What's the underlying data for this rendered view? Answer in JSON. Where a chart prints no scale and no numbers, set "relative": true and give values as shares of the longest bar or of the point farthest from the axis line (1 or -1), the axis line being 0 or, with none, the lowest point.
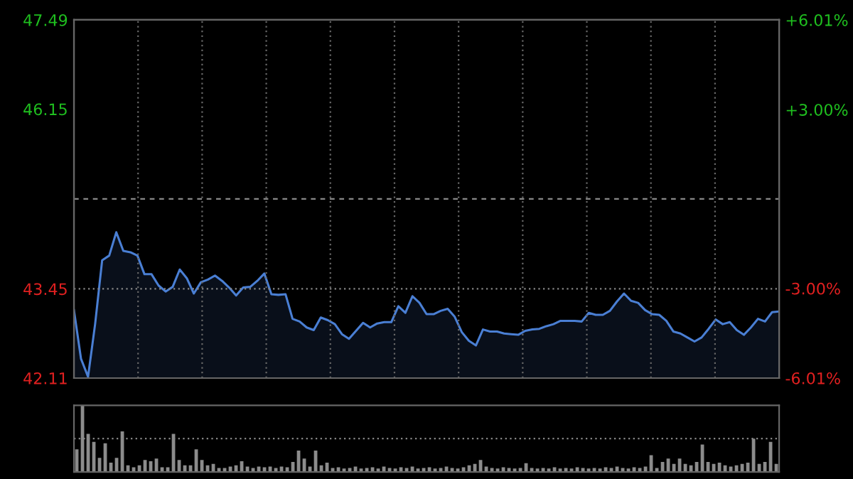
{
  "chart_data": [
    {
      "type": "area",
      "categories": [
        null,
        null,
        null,
        null,
        null,
        null,
        null,
        null,
        null,
        null,
        null,
        null,
        null,
        null,
        null,
        null,
        null,
        null,
        null,
        null,
        null,
        null,
        null,
        null,
        null,
        null,
        null,
        null,
        null,
        null,
        null,
        null,
        null,
        null,
        null,
        null,
        null,
        null,
        null,
        null,
        null,
        null,
        null,
        null,
        null,
        null,
        null,
        null,
        null,
        null,
        null,
        null,
        null,
        null,
        null,
        null,
        null,
        null,
        null,
        null,
        null,
        null,
        null,
        null,
        null,
        null,
        null,
        null,
        null,
        null,
        null,
        null,
        null,
        null,
        null,
        null,
        null,
        null,
        null,
        null,
        null,
        null,
        null,
        null,
        null,
        null,
        null,
        null,
        null,
        null,
        null,
        null,
        null,
        null,
        null,
        null,
        null,
        null,
        null,
        null,
        null
      ],
      "series": [
        {
          "color": "#4a7fd4",
          "values": [
            43.13,
            42.4,
            42.13,
            42.92,
            43.88,
            43.95,
            44.3,
            44.02,
            44.0,
            43.95,
            43.67,
            43.67,
            43.5,
            43.41,
            43.48,
            43.74,
            43.61,
            43.38,
            43.55,
            43.59,
            43.65,
            43.57,
            43.47,
            43.35,
            43.47,
            43.48,
            43.57,
            43.68,
            43.37,
            43.36,
            43.37,
            43.0,
            42.96,
            42.87,
            42.83,
            43.02,
            42.98,
            42.92,
            42.77,
            42.7,
            42.82,
            42.94,
            42.87,
            42.93,
            42.95,
            42.95,
            43.19,
            43.09,
            43.34,
            43.24,
            43.07,
            43.07,
            43.12,
            43.15,
            43.03,
            42.8,
            42.67,
            42.6,
            42.84,
            42.81,
            42.81,
            42.78,
            42.77,
            42.76,
            42.82,
            42.84,
            42.85,
            42.89,
            42.92,
            42.97,
            42.97,
            42.97,
            42.96,
            43.09,
            43.06,
            43.06,
            43.12,
            43.26,
            43.38,
            43.27,
            43.24,
            43.13,
            43.07,
            43.06,
            42.97,
            42.81,
            42.78,
            42.72,
            42.66,
            42.72,
            42.85,
            42.99,
            42.92,
            42.95,
            42.83,
            42.76,
            42.87,
            43.0,
            42.96,
            43.1,
            43.11
          ]
        }
      ],
      "ylim": [
        42.11,
        47.49
      ],
      "yticks": [
        42.11,
        43.45,
        46.15,
        47.49
      ],
      "y2lim": [
        -6.01,
        6.01
      ],
      "y2ticks": [
        {
          "value": -6.01,
          "label": "-6.01%"
        },
        {
          "value": -3.0,
          "label": "-3.00%"
        },
        {
          "value": 3.0,
          "label": "+3.00%"
        },
        {
          "value": 6.01,
          "label": "+6.01%"
        }
      ],
      "grid": "x",
      "ref_lines": [
        {
          "axis": "y",
          "value": 44.8,
          "line_style": "dashed",
          "color": "#888888"
        },
        {
          "axis": "y",
          "value": 43.45,
          "line_style": "dotted",
          "color": "#888888"
        }
      ]
    },
    {
      "type": "bar",
      "relative": true,
      "categories": [
        null,
        null,
        null,
        null,
        null,
        null,
        null,
        null,
        null,
        null,
        null,
        null,
        null,
        null,
        null,
        null,
        null,
        null,
        null,
        null,
        null,
        null,
        null,
        null,
        null,
        null,
        null,
        null,
        null,
        null,
        null,
        null,
        null,
        null,
        null,
        null,
        null,
        null,
        null,
        null,
        null,
        null,
        null,
        null,
        null,
        null,
        null,
        null,
        null,
        null,
        null,
        null,
        null,
        null,
        null,
        null,
        null,
        null,
        null,
        null,
        null,
        null,
        null,
        null,
        null,
        null,
        null,
        null,
        null,
        null,
        null,
        null,
        null,
        null,
        null,
        null,
        null,
        null,
        null,
        null,
        null,
        null,
        null,
        null,
        null,
        null,
        null,
        null,
        null,
        null,
        null,
        null,
        null,
        null,
        null,
        null,
        null,
        null,
        null,
        null,
        null,
        null,
        null,
        null,
        null,
        null,
        null,
        null,
        null,
        null,
        null,
        null,
        null,
        null,
        null,
        null,
        null,
        null,
        null,
        null,
        null,
        null,
        null,
        null
      ],
      "color": "#8c8c8c",
      "values": [
        0.34,
        1.0,
        0.57,
        0.45,
        0.21,
        0.43,
        0.14,
        0.21,
        0.61,
        0.1,
        0.07,
        0.1,
        0.18,
        0.16,
        0.2,
        0.07,
        0.07,
        0.57,
        0.18,
        0.1,
        0.1,
        0.34,
        0.18,
        0.1,
        0.12,
        0.06,
        0.06,
        0.08,
        0.1,
        0.16,
        0.08,
        0.06,
        0.08,
        0.07,
        0.08,
        0.06,
        0.08,
        0.07,
        0.15,
        0.32,
        0.2,
        0.08,
        0.32,
        0.1,
        0.14,
        0.06,
        0.07,
        0.05,
        0.06,
        0.08,
        0.05,
        0.06,
        0.07,
        0.05,
        0.08,
        0.06,
        0.05,
        0.07,
        0.06,
        0.08,
        0.05,
        0.06,
        0.07,
        0.05,
        0.06,
        0.08,
        0.06,
        0.05,
        0.07,
        0.1,
        0.12,
        0.18,
        0.08,
        0.06,
        0.05,
        0.07,
        0.06,
        0.05,
        0.06,
        0.13,
        0.06,
        0.05,
        0.06,
        0.05,
        0.07,
        0.05,
        0.06,
        0.05,
        0.07,
        0.06,
        0.05,
        0.06,
        0.05,
        0.07,
        0.06,
        0.08,
        0.06,
        0.05,
        0.07,
        0.06,
        0.08,
        0.25,
        0.06,
        0.15,
        0.2,
        0.12,
        0.2,
        0.12,
        0.1,
        0.15,
        0.41,
        0.15,
        0.12,
        0.14,
        0.1,
        0.08,
        0.1,
        0.12,
        0.14,
        0.5,
        0.12,
        0.15,
        0.45,
        0.12
      ],
      "ref_lines": [
        {
          "axis": "y",
          "value": 0.5,
          "line_style": "dotted",
          "color": "#888888"
        }
      ]
    }
  ]
}
